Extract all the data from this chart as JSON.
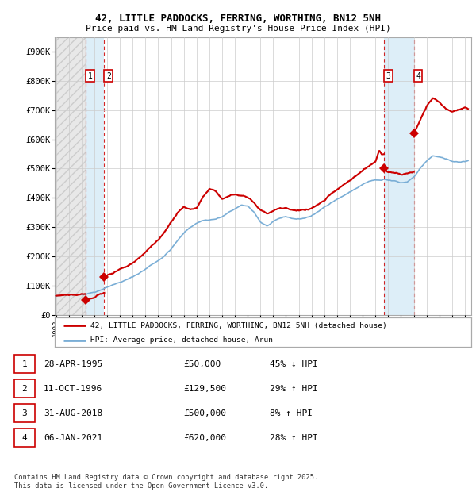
{
  "title1": "42, LITTLE PADDOCKS, FERRING, WORTHING, BN12 5NH",
  "title2": "Price paid vs. HM Land Registry's House Price Index (HPI)",
  "ylim": [
    0,
    950000
  ],
  "yticks": [
    0,
    100000,
    200000,
    300000,
    400000,
    500000,
    600000,
    700000,
    800000,
    900000
  ],
  "ytick_labels": [
    "£0",
    "£100K",
    "£200K",
    "£300K",
    "£400K",
    "£500K",
    "£600K",
    "£700K",
    "£800K",
    "£900K"
  ],
  "xmin": 1992.9,
  "xmax": 2025.5,
  "sale_color": "#cc0000",
  "hpi_color": "#7aaed6",
  "grid_color": "#cccccc",
  "hatch_color": "#bbbbbb",
  "shade_color": "#ddeeff",
  "sale_dates": [
    1995.32,
    1996.78,
    2018.66,
    2021.01
  ],
  "sale_prices": [
    50000,
    129500,
    500000,
    620000
  ],
  "sale_labels": [
    "1",
    "2",
    "3",
    "4"
  ],
  "legend_sale": "42, LITTLE PADDOCKS, FERRING, WORTHING, BN12 5NH (detached house)",
  "legend_hpi": "HPI: Average price, detached house, Arun",
  "table_entries": [
    {
      "label": "1",
      "date": "28-APR-1995",
      "price": "£50,000",
      "hpi": "45% ↓ HPI"
    },
    {
      "label": "2",
      "date": "11-OCT-1996",
      "price": "£129,500",
      "hpi": "29% ↑ HPI"
    },
    {
      "label": "3",
      "date": "31-AUG-2018",
      "price": "£500,000",
      "hpi": "8% ↑ HPI"
    },
    {
      "label": "4",
      "date": "06-JAN-2021",
      "price": "£620,000",
      "hpi": "28% ↑ HPI"
    }
  ],
  "footnote": "Contains HM Land Registry data © Crown copyright and database right 2025.\nThis data is licensed under the Open Government Licence v3.0."
}
